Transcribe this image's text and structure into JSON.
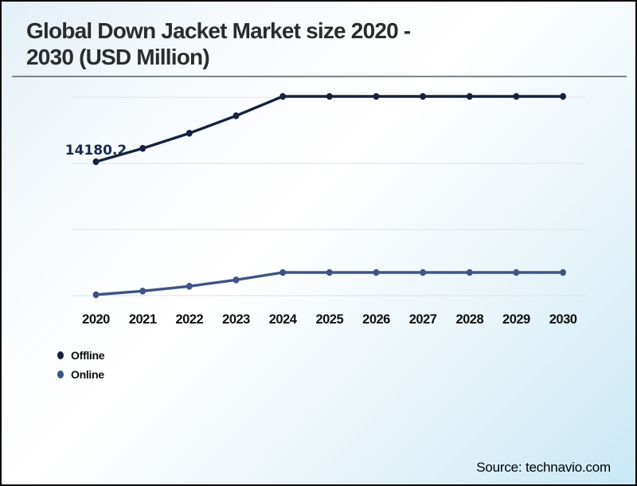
{
  "header": {
    "title_lines": [
      "Global Down Jacket Market size 2020 -",
      "2030 (USD Million)"
    ]
  },
  "legend": [
    {
      "label": "Offline",
      "color": "#15213e"
    },
    {
      "label": "Online",
      "color": "#3e5484"
    }
  ],
  "footer": {
    "source": "Source: technavio.com"
  },
  "colors": {
    "grid": "#e3e6e8",
    "axis_text": "#0e0e0e",
    "point_label": "#17294f"
  },
  "chart_data": {
    "type": "line",
    "title": "Global Down Jacket Market size 2020 - 2030 (USD Million)",
    "xlabel": "",
    "ylabel": "USD Million",
    "categories": [
      "2020",
      "2021",
      "2022",
      "2023",
      "2024",
      "2025",
      "2026",
      "2027",
      "2028",
      "2029",
      "2030"
    ],
    "series": [
      {
        "name": "Offline",
        "color": "#15213e",
        "values": [
          14180.2,
          15600,
          17200,
          19050,
          21100,
          21100,
          21100,
          21100,
          21100,
          21100,
          21100
        ],
        "point_label": {
          "index": 0,
          "text": "14180.2"
        }
      },
      {
        "name": "Online",
        "color": "#3e5484",
        "values": [
          90,
          480,
          990,
          1660,
          2450,
          2450,
          2450,
          2450,
          2450,
          2450,
          2450
        ]
      }
    ],
    "ylim": [
      0,
      21100
    ],
    "gridlines": [
      0,
      7000,
      14000,
      21000
    ],
    "grid": "horizontal",
    "legend_position": "bottom-left",
    "y_axis_labels_visible": false
  }
}
